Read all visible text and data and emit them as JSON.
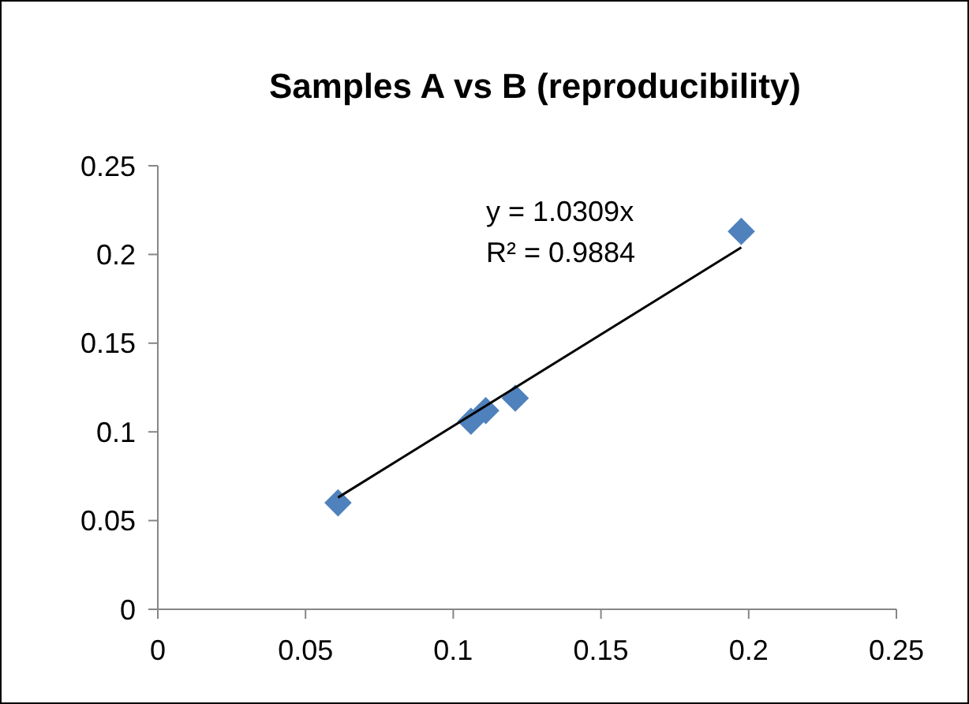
{
  "chart_data": {
    "type": "scatter",
    "title": "Samples A vs B (reproducibility)",
    "xlim": [
      0,
      0.25
    ],
    "xticks": [
      0,
      0.05,
      0.1,
      0.15,
      0.2,
      0.25
    ],
    "ylim": [
      0,
      0.25
    ],
    "yticks": [
      0,
      0.05,
      0.1,
      0.15,
      0.2,
      0.25
    ],
    "grid": false,
    "marker": "diamond",
    "series": [
      {
        "color": "#4f81bd",
        "x": [
          0.061,
          0.106,
          0.111,
          0.121,
          0.1975
        ],
        "values": [
          0.06,
          0.106,
          0.112,
          0.119,
          0.213
        ]
      },
      {
        "type": "line",
        "color": "#000000",
        "marker": "none",
        "x": [
          0.061,
          0.1975
        ],
        "values": [
          0.063,
          0.204
        ]
      }
    ],
    "annotations": [
      "y = 1.0309x",
      "R² = 0.9884"
    ]
  }
}
